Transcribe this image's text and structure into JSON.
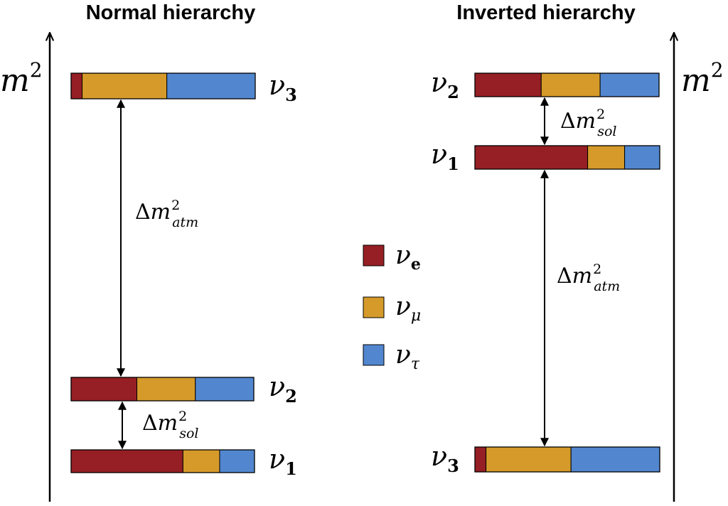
{
  "colors": {
    "nu_e": "#951f24",
    "nu_mu": "#d59a2a",
    "nu_tau": "#5287cf"
  },
  "normal": {
    "title": "Normal hierarchy",
    "axis": {
      "base": "m",
      "exp": "2"
    },
    "states": [
      {
        "sym": "ν",
        "sub": "3",
        "fractions": [
          0.06,
          0.46,
          0.48
        ]
      },
      {
        "sym": "ν",
        "sub": "2",
        "fractions": [
          0.36,
          0.32,
          0.32
        ]
      },
      {
        "sym": "ν",
        "sub": "1",
        "fractions": [
          0.61,
          0.2,
          0.19
        ]
      }
    ],
    "gaps": [
      {
        "delta": "Δ",
        "m": "m",
        "sup": "2",
        "sub": "atm"
      },
      {
        "delta": "Δ",
        "m": "m",
        "sup": "2",
        "sub": "sol"
      }
    ]
  },
  "inverted": {
    "title": "Inverted hierarchy",
    "axis": {
      "base": "m",
      "exp": "2"
    },
    "states": [
      {
        "sym": "ν",
        "sub": "2",
        "fractions": [
          0.36,
          0.32,
          0.32
        ]
      },
      {
        "sym": "ν",
        "sub": "1",
        "fractions": [
          0.61,
          0.2,
          0.19
        ]
      },
      {
        "sym": "ν",
        "sub": "3",
        "fractions": [
          0.06,
          0.46,
          0.48
        ]
      }
    ],
    "gaps": [
      {
        "delta": "Δ",
        "m": "m",
        "sup": "2",
        "sub": "sol"
      },
      {
        "delta": "Δ",
        "m": "m",
        "sup": "2",
        "sub": "atm"
      }
    ]
  },
  "legend": [
    {
      "sym": "ν",
      "sub": "e",
      "color_key": "nu_e"
    },
    {
      "sym": "ν",
      "sub": "μ",
      "color_key": "nu_mu"
    },
    {
      "sym": "ν",
      "sub": "τ",
      "color_key": "nu_tau"
    }
  ]
}
